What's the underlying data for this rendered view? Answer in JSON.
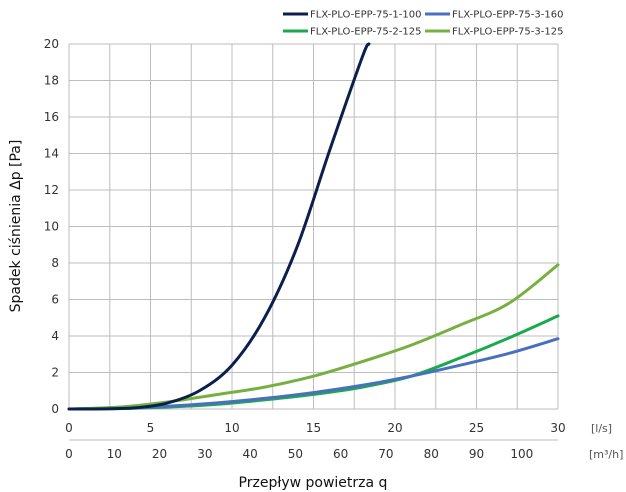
{
  "chart_data": {
    "type": "line",
    "title": "",
    "ylabel": "Spadek ciśnienia Δp [Pa]",
    "xlabel": "Przepływ powietrza q",
    "x_unit_primary": "[l/s]",
    "x_unit_secondary": "[m³/h]",
    "xlim": [
      0,
      30
    ],
    "ylim": [
      0,
      20
    ],
    "x_ticks": [
      "0",
      "5",
      "10",
      "15",
      "20",
      "25",
      "30"
    ],
    "x_ticks_secondary": [
      "0",
      "10",
      "20",
      "30",
      "40",
      "50",
      "60",
      "70",
      "80",
      "90",
      "100"
    ],
    "y_ticks": [
      "0",
      "2",
      "4",
      "6",
      "8",
      "10",
      "12",
      "14",
      "16",
      "18",
      "20"
    ],
    "grid": true,
    "legend_position": "top",
    "series": [
      {
        "name": "FLX-PLO-EPP-75-1-100",
        "color": "#0b1f4d",
        "x": [
          0,
          2,
          4,
          6,
          8,
          10,
          12,
          14,
          16,
          18,
          18.4
        ],
        "y": [
          0,
          0.01,
          0.06,
          0.32,
          1.0,
          2.4,
          5.0,
          8.9,
          14.2,
          19.3,
          20
        ]
      },
      {
        "name": "FLX-PLO-EPP-75-3-160",
        "color": "#4a6fbf",
        "x": [
          0,
          3,
          6,
          9,
          12,
          15,
          18,
          21,
          24,
          27,
          30
        ],
        "y": [
          0,
          0.04,
          0.15,
          0.33,
          0.58,
          0.9,
          1.3,
          1.8,
          2.4,
          3.05,
          3.85
        ]
      },
      {
        "name": "FLX-PLO-EPP-75-2-125",
        "color": "#1aaa4e",
        "x": [
          0,
          3,
          6,
          9,
          12,
          15,
          18,
          21,
          24,
          27,
          30
        ],
        "y": [
          0,
          0.02,
          0.1,
          0.25,
          0.5,
          0.8,
          1.2,
          1.8,
          2.8,
          3.9,
          5.1
        ]
      },
      {
        "name": "FLX-PLO-EPP-75-3-125",
        "color": "#76b041",
        "x": [
          0,
          3,
          6,
          9,
          12,
          15,
          18,
          21,
          24,
          27,
          30
        ],
        "y": [
          0,
          0.1,
          0.38,
          0.78,
          1.2,
          1.8,
          2.6,
          3.5,
          4.6,
          5.8,
          7.9
        ]
      }
    ]
  }
}
